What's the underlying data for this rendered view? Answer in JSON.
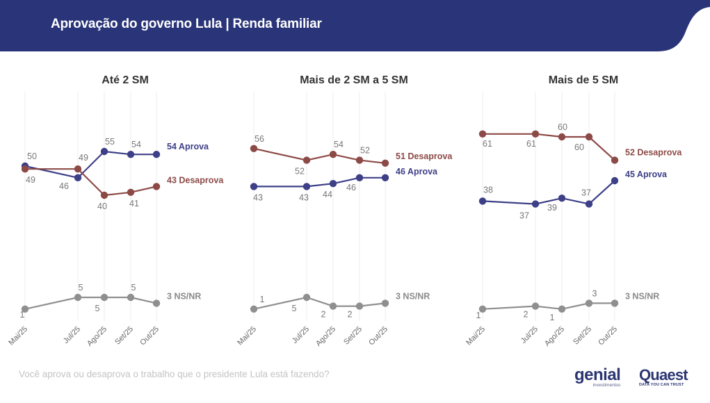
{
  "header": {
    "title": "Aprovação do governo Lula | Renda familiar",
    "background_color": "#293479"
  },
  "footer": {
    "question": "Você aprova ou desaprova o trabalho que o presidente Lula está fazendo?",
    "logo_genial": "genial",
    "logo_genial_sub": "investimentos",
    "logo_quaest": "Quaest",
    "logo_quaest_sub": "DATA YOU CAN TRUST"
  },
  "colors": {
    "aprova": "#3d3f87",
    "desaprova": "#8c4a46",
    "nsnr": "#8f8f8f",
    "grid": "#eeeeee"
  },
  "chart_data": [
    {
      "type": "line",
      "title": "Até 2 SM",
      "x": [
        "Mai/25",
        "Jul/25",
        "Ago/25",
        "Set/25",
        "Out/25"
      ],
      "series": [
        {
          "name": "Aprova",
          "key": "aprova",
          "values": [
            50,
            46,
            55,
            54,
            54
          ],
          "end_label": "54 Aprova"
        },
        {
          "name": "Desaprova",
          "key": "desaprova",
          "values": [
            49,
            49,
            40,
            41,
            43
          ],
          "end_label": "43 Desaprova"
        },
        {
          "name": "NS/NR",
          "key": "nsnr",
          "values": [
            1,
            5,
            5,
            5,
            3
          ],
          "end_label": "3 NS/NR"
        }
      ],
      "ylim": [
        0,
        70
      ]
    },
    {
      "type": "line",
      "title": "Mais de 2 SM a 5 SM",
      "x": [
        "Mai/25",
        "Jul/25",
        "Ago/25",
        "Set/25",
        "Out/25"
      ],
      "series": [
        {
          "name": "Aprova",
          "key": "aprova",
          "values": [
            43,
            43,
            44,
            46,
            46
          ],
          "end_label": "46 Aprova"
        },
        {
          "name": "Desaprova",
          "key": "desaprova",
          "values": [
            56,
            52,
            54,
            52,
            51
          ],
          "end_label": "51 Desaprova"
        },
        {
          "name": "NS/NR",
          "key": "nsnr",
          "values": [
            1,
            5,
            2,
            2,
            3
          ],
          "end_label": "3 NS/NR"
        }
      ],
      "ylim": [
        0,
        70
      ]
    },
    {
      "type": "line",
      "title": "Mais de 5 SM",
      "x": [
        "Mai/25",
        "Jul/25",
        "Ago/25",
        "Set/25",
        "Out/25"
      ],
      "series": [
        {
          "name": "Aprova",
          "key": "aprova",
          "values": [
            38,
            37,
            39,
            37,
            45
          ],
          "end_label": "45 Aprova"
        },
        {
          "name": "Desaprova",
          "key": "desaprova",
          "values": [
            61,
            61,
            60,
            60,
            52
          ],
          "end_label": "52 Desaprova"
        },
        {
          "name": "NS/NR",
          "key": "nsnr",
          "values": [
            1,
            2,
            1,
            3,
            3
          ],
          "end_label": "3 NS/NR"
        }
      ],
      "ylim": [
        0,
        70
      ]
    }
  ]
}
